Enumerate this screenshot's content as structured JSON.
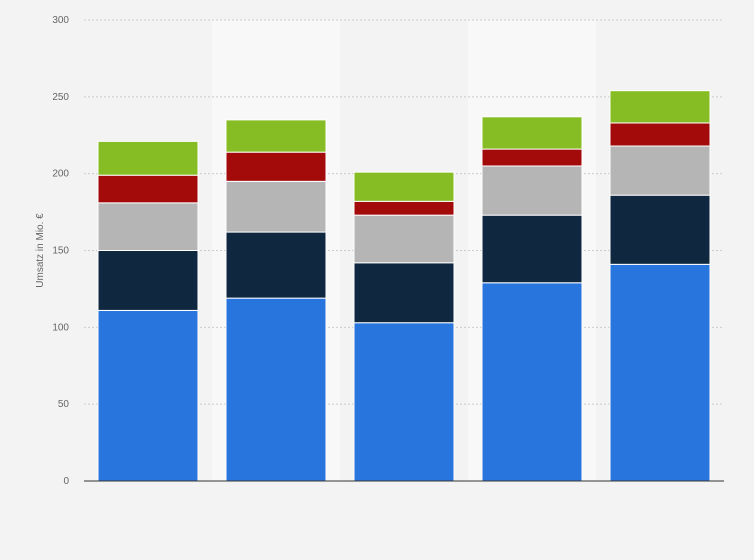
{
  "chart_data": {
    "type": "bar",
    "stacked": true,
    "ylabel": "Umsatz in Mio. €",
    "xlabel": "",
    "ylim": [
      0,
      300
    ],
    "yticks": [
      0,
      50,
      100,
      150,
      200,
      250,
      300
    ],
    "categories": [
      "",
      "",
      "",
      "",
      ""
    ],
    "grid": true,
    "alternating_column_shading": true,
    "series": [
      {
        "color": "#2876dd",
        "values": [
          111,
          119,
          103,
          129,
          141
        ]
      },
      {
        "color": "#0f2840",
        "values": [
          39,
          43,
          39,
          44,
          45
        ]
      },
      {
        "color": "#b5b5b5",
        "values": [
          31,
          33,
          31,
          32,
          32
        ]
      },
      {
        "color": "#a30b0b",
        "values": [
          18,
          19,
          9,
          11,
          15
        ]
      },
      {
        "color": "#86bc24",
        "values": [
          22,
          21,
          19,
          21,
          21
        ]
      }
    ]
  }
}
